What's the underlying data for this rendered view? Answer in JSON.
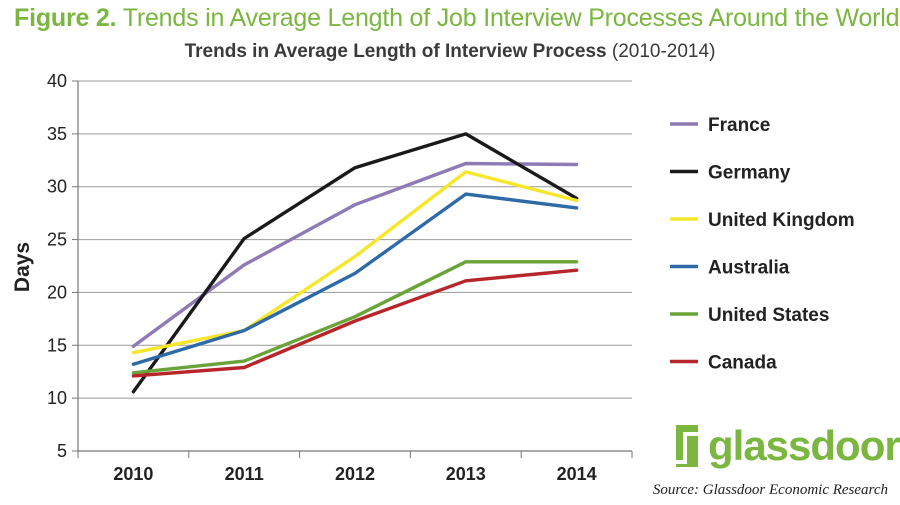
{
  "figure": {
    "label": "Figure 2.",
    "title": "Trends in Average Length of Job Interview Processes Around the World"
  },
  "chart_data": {
    "type": "line",
    "title": "Trends in Average Length of Interview Process",
    "subtitle": "(2010-2014)",
    "xlabel": "",
    "ylabel": "Days",
    "categories": [
      "2010",
      "2011",
      "2012",
      "2013",
      "2014"
    ],
    "ylim": [
      5,
      40
    ],
    "yticks": [
      5,
      10,
      15,
      20,
      25,
      30,
      35,
      40
    ],
    "grid": true,
    "legend_position": "right",
    "series": [
      {
        "name": "France",
        "color": "#8e7ab5",
        "values": [
          14.9,
          22.6,
          28.3,
          32.2,
          32.1
        ]
      },
      {
        "name": "Germany",
        "color": "#1a1a1a",
        "values": [
          10.6,
          25.1,
          31.8,
          35.0,
          28.9
        ]
      },
      {
        "name": "United Kingdom",
        "color": "#f6e72a",
        "values": [
          14.3,
          16.4,
          23.4,
          31.4,
          28.7
        ]
      },
      {
        "name": "Australia",
        "color": "#2f6aa8",
        "values": [
          13.2,
          16.4,
          21.8,
          29.3,
          28.0
        ]
      },
      {
        "name": "United States",
        "color": "#6aa338",
        "values": [
          12.4,
          13.5,
          17.7,
          22.9,
          22.9
        ]
      },
      {
        "name": "Canada",
        "color": "#b7262a",
        "values": [
          12.1,
          12.9,
          17.3,
          21.1,
          22.1
        ]
      }
    ]
  },
  "branding": {
    "logo_text": "glassdoor",
    "logo_reg": "®",
    "logo_color": "#7ab640",
    "source": "Source: Glassdoor Economic Research"
  }
}
